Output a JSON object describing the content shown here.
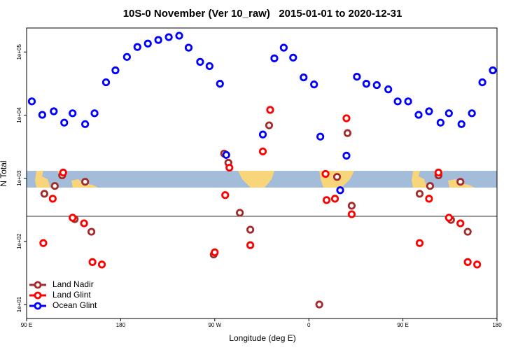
{
  "chart_data": {
    "type": "scatter",
    "title": "10S-0 November (Ver 10_raw)   2015-01-01 to 2020-12-31",
    "xlabel": "Longitude (deg E)",
    "ylabel": "N Total",
    "xlim": [
      90,
      540
    ],
    "xticks": [
      {
        "value": 90,
        "label": "90 E"
      },
      180,
      {
        "value": 270,
        "label": "90 W"
      },
      {
        "value": 360,
        "label": "0"
      },
      {
        "value": 450,
        "label": "90 E"
      },
      {
        "value": 540,
        "label": "180"
      }
    ],
    "ylim": [
      6,
      240000
    ],
    "log_y": true,
    "yticks": [
      {
        "value": 10,
        "label": "1e+01"
      },
      {
        "value": 100,
        "label": "1e+02"
      },
      {
        "value": 1000,
        "label": "1e+03"
      },
      {
        "value": 10000,
        "label": "1e+04"
      },
      {
        "value": 100000,
        "label": "1e+05"
      }
    ],
    "legend": "bottom-left",
    "series": [
      {
        "name": "Land Nadir",
        "color": "#a52a2a",
        "x": [
          107,
          117,
          124,
          136,
          146,
          152,
          269,
          279,
          283,
          294,
          304,
          322,
          370,
          387,
          397,
          401,
          466,
          476,
          484,
          496,
          505,
          512
        ],
        "values": [
          568,
          754,
          1110,
          225,
          879,
          142,
          62,
          2460,
          1760,
          284,
          153,
          6890,
          10,
          1050,
          5190,
          367,
          568,
          754,
          1110,
          219,
          879,
          142
        ]
      },
      {
        "name": "Land Glint",
        "color": "#ff0000",
        "x": [
          106,
          115,
          125,
          134,
          145,
          153,
          162,
          270,
          280,
          284,
          304,
          316,
          323,
          376,
          377,
          385,
          396,
          401,
          466,
          475,
          484,
          494,
          505,
          512,
          521
        ],
        "values": [
          94,
          474,
          1230,
          237,
          193,
          47,
          43,
          67,
          540,
          1470,
          87,
          2660,
          12100,
          1170,
          451,
          474,
          8910,
          269,
          94,
          474,
          1230,
          237,
          193,
          47,
          43
        ]
      },
      {
        "name": "Ocean Glint",
        "color": "#0000ff",
        "x": [
          95,
          105,
          116,
          126,
          134,
          146,
          155,
          166,
          175,
          186,
          196,
          206,
          216,
          226,
          236,
          245,
          256,
          265,
          275,
          281,
          316,
          327,
          336,
          345,
          355,
          365,
          371,
          390,
          396,
          406,
          415,
          425,
          436,
          445,
          455,
          465,
          475,
          486,
          494,
          506,
          516,
          526,
          536
        ],
        "values": [
          16500,
          10100,
          11500,
          7600,
          10700,
          7200,
          10700,
          33100,
          51200,
          83500,
          120000,
          136000,
          155000,
          172000,
          181000,
          117000,
          69800,
          59800,
          31400,
          2340,
          4930,
          79300,
          117000,
          81500,
          39600,
          30600,
          4560,
          646,
          2280,
          40600,
          31400,
          29900,
          25600,
          16500,
          16500,
          10100,
          11500,
          7600,
          10700,
          7200,
          10700,
          33100,
          51200
        ]
      }
    ]
  }
}
